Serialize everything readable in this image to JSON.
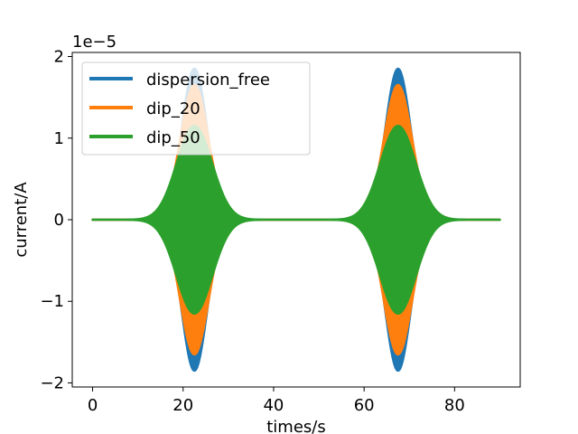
{
  "chart_data": {
    "type": "line",
    "title": "",
    "xlabel": "times/s",
    "ylabel": "current/A",
    "y_offset_text": "1e−5",
    "xlim": [
      -4.5,
      94.5
    ],
    "ylim": [
      -2.05,
      2.05
    ],
    "xticks": [
      0,
      20,
      40,
      60,
      80
    ],
    "xtick_labels": [
      "0",
      "20",
      "40",
      "60",
      "80"
    ],
    "yticks": [
      -2,
      -1,
      0,
      1,
      2
    ],
    "ytick_labels": [
      "−2",
      "−1",
      "0",
      "1",
      "2"
    ],
    "grid": false,
    "legend_position": "top-left",
    "pulse_shape": "oscillating Gaussian envelope",
    "series": [
      {
        "name": "dispersion_free",
        "color": "#1f77b4",
        "pulses": [
          {
            "center": 22.5,
            "peak": 1.85,
            "sigma": 2.8
          },
          {
            "center": 67.5,
            "peak": 1.85,
            "sigma": 2.8
          }
        ]
      },
      {
        "name": "dip_20",
        "color": "#ff7f0e",
        "pulses": [
          {
            "center": 22.5,
            "peak": 1.65,
            "sigma": 3.1
          },
          {
            "center": 67.5,
            "peak": 1.65,
            "sigma": 3.1
          }
        ]
      },
      {
        "name": "dip_50",
        "color": "#2ca02c",
        "pulses": [
          {
            "center": 22.5,
            "peak": 1.15,
            "sigma": 3.9
          },
          {
            "center": 67.5,
            "peak": 1.15,
            "sigma": 3.9
          }
        ]
      }
    ],
    "x_range": [
      0,
      90
    ]
  }
}
